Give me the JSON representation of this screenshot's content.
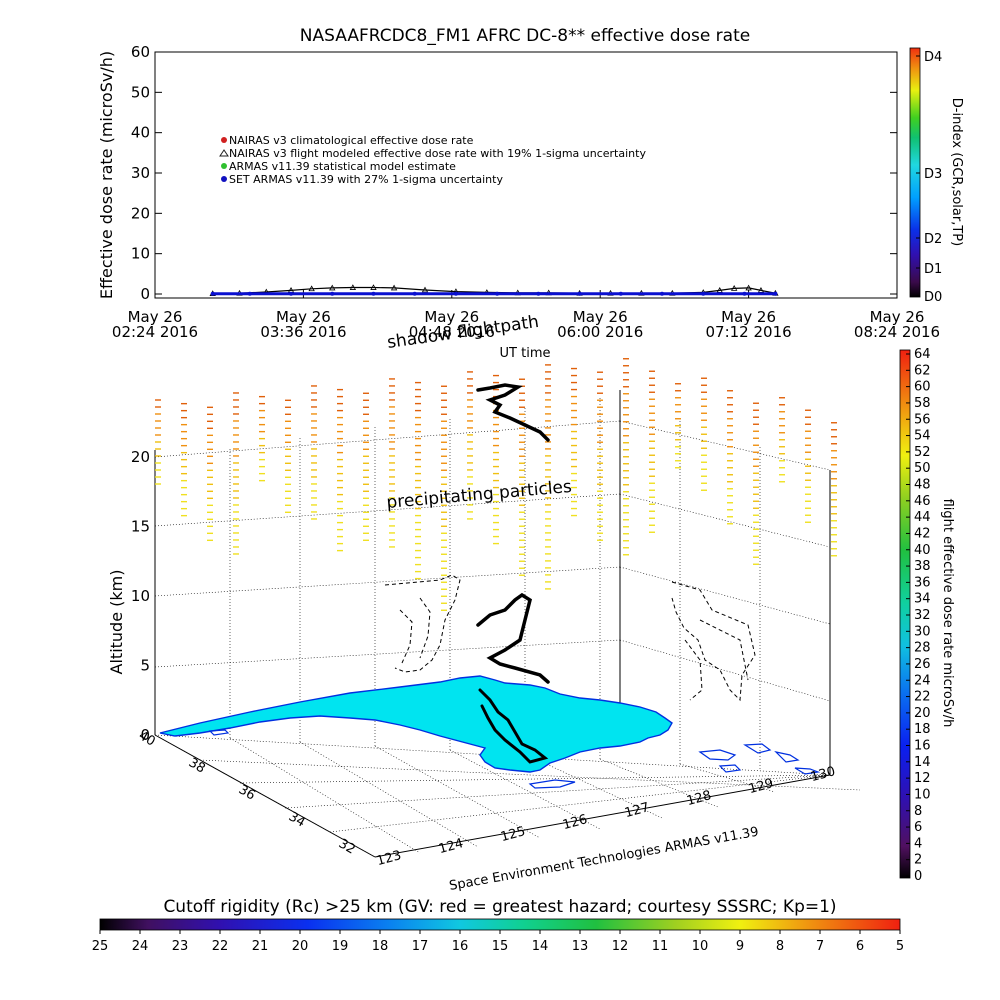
{
  "chart_data": [
    {
      "type": "line",
      "title": "NASAAFRCDC8_FM1 AFRC DC-8** effective dose rate",
      "ylabel": "Effective dose rate (microSv/h)",
      "xlabel": "UT time",
      "ylim": [
        0,
        60
      ],
      "yticks": [
        "0",
        "10",
        "20",
        "30",
        "40",
        "50",
        "60"
      ],
      "xticks": [
        {
          "day": "May 26",
          "time": "02:24 2016"
        },
        {
          "day": "May 26",
          "time": "03:36 2016"
        },
        {
          "day": "May 26",
          "time": "04:48 2016"
        },
        {
          "day": "May 26",
          "time": "06:00 2016"
        },
        {
          "day": "May 26",
          "time": "07:12 2016"
        },
        {
          "day": "May 26",
          "time": "08:24 2016"
        }
      ],
      "legend": [
        {
          "label": "NAIRAS v3 climatological effective dose rate",
          "color": "#d02020"
        },
        {
          "label": "NAIRAS v3 flight modeled effective dose rate with 19% 1-sigma uncertainty",
          "color": "#202020"
        },
        {
          "label": "ARMAS v11.39 statistical model estimate",
          "color": "#30c030"
        },
        {
          "label": "SET ARMAS v11.39 with 27% 1-sigma uncertainty",
          "color": "#1010c0"
        }
      ],
      "series": [
        {
          "name": "NAIRAS v3 flight modeled effective dose rate with 19% 1-sigma uncertainty",
          "x": [
            "02:52",
            "03:05",
            "03:18",
            "03:30",
            "03:40",
            "03:50",
            "04:00",
            "04:10",
            "04:20",
            "04:35",
            "04:50",
            "05:05",
            "05:20",
            "05:35",
            "05:50",
            "06:05",
            "06:20",
            "06:35",
            "06:50",
            "06:58",
            "07:05",
            "07:12",
            "07:18",
            "07:25"
          ],
          "values": [
            0.1,
            0.2,
            0.5,
            0.9,
            1.3,
            1.5,
            1.6,
            1.6,
            1.5,
            1.0,
            0.6,
            0.4,
            0.3,
            0.3,
            0.2,
            0.2,
            0.2,
            0.2,
            0.4,
            0.9,
            1.4,
            1.5,
            0.9,
            0.2
          ]
        },
        {
          "name": "SET ARMAS v11.39 with 27% 1-sigma uncertainty",
          "x": [
            "02:52",
            "03:10",
            "03:30",
            "03:50",
            "04:10",
            "04:30",
            "04:50",
            "05:10",
            "05:30",
            "05:50",
            "06:10",
            "06:30",
            "06:50",
            "07:10",
            "07:25"
          ],
          "values": [
            0.05,
            0.05,
            0.05,
            0.05,
            0.05,
            0.05,
            0.05,
            0.05,
            0.05,
            0.05,
            0.05,
            0.05,
            0.05,
            0.05,
            0.05
          ]
        }
      ],
      "colorbar": {
        "label": "D-index (GCR,solar,TP)",
        "ticks": [
          "D0",
          "D1",
          "D2",
          "D3",
          "D4"
        ]
      }
    },
    {
      "type": "scatter",
      "ylabel": "Altitude (km)",
      "zticks": [
        "0",
        "5",
        "10",
        "15",
        "20"
      ],
      "lat_ticks": [
        "40",
        "38",
        "36",
        "34",
        "32"
      ],
      "lon_ticks": [
        "123",
        "124",
        "125",
        "126",
        "127",
        "128",
        "129",
        "130"
      ],
      "annotations": [
        "shadow flightpath",
        "precipitating particles",
        "UT time"
      ],
      "credit": "Space Environment Technologies ARMAS v11.39",
      "colorbar": {
        "label": "flight effective dose rate microSv/h",
        "ticks": [
          "0",
          "2",
          "4",
          "6",
          "8",
          "10",
          "12",
          "14",
          "16",
          "18",
          "20",
          "22",
          "24",
          "26",
          "28",
          "30",
          "32",
          "34",
          "36",
          "38",
          "40",
          "42",
          "44",
          "46",
          "48",
          "50",
          "52",
          "54",
          "56",
          "58",
          "60",
          "62",
          "64"
        ]
      },
      "rigidity_bar": {
        "label": "Cutoff rigidity (Rc) >25 km (GV: red = greatest hazard; courtesy SSSRC; Kp=1)",
        "ticks": [
          "25",
          "24",
          "23",
          "22",
          "21",
          "20",
          "19",
          "18",
          "17",
          "16",
          "15",
          "14",
          "13",
          "12",
          "11",
          "10",
          "9",
          "8",
          "7",
          "6",
          "5"
        ]
      }
    }
  ]
}
